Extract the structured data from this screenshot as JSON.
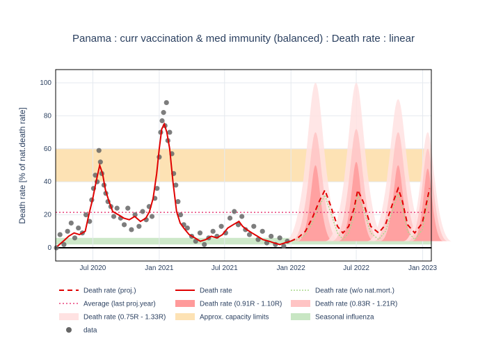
{
  "chart_data": {
    "type": "line",
    "title": "Panama : curr vaccination & med immunity (balanced) : Death rate : linear",
    "ylabel": "Death rate [% of nat.death rate]",
    "xlabel": "",
    "ylim": [
      -8,
      108
    ],
    "xlim": [
      "2020-03-20",
      "2023-01-25"
    ],
    "yticks": [
      0,
      20,
      40,
      60,
      80,
      100
    ],
    "xticks": [
      {
        "date": "2020-07-01",
        "label": "Jul 2020"
      },
      {
        "date": "2021-01-01",
        "label": "Jan 2021"
      },
      {
        "date": "2021-07-01",
        "label": "Jul 2021"
      },
      {
        "date": "2022-01-01",
        "label": "Jan 2022"
      },
      {
        "date": "2022-07-01",
        "label": "Jul 2022"
      },
      {
        "date": "2023-01-01",
        "label": "Jan 2023"
      }
    ],
    "grid": true,
    "bands": {
      "capacity": {
        "y0": 40,
        "y1": 60,
        "color": "#fde2b4"
      },
      "influenza": {
        "y0": 2,
        "y1": 6,
        "color": "#c8e6c3"
      }
    },
    "average_last_proj_year": 21.5,
    "colors": {
      "proj": "#e00000",
      "death_rate": "#e00000",
      "wo_natmort": "#a8d98c",
      "average": "#e8407a",
      "data": "#666666",
      "band_inner": "#ff9a9a",
      "band_mid": "#ffc4c4",
      "band_outer": "#ffe2e2"
    },
    "series": [
      {
        "name": "Death rate",
        "x": [
          "2020-03-25",
          "2020-04-10",
          "2020-04-25",
          "2020-05-10",
          "2020-05-25",
          "2020-06-10",
          "2020-06-20",
          "2020-07-01",
          "2020-07-10",
          "2020-07-20",
          "2020-07-28",
          "2020-08-05",
          "2020-08-15",
          "2020-08-25",
          "2020-09-10",
          "2020-09-25",
          "2020-10-10",
          "2020-10-25",
          "2020-11-10",
          "2020-11-25",
          "2020-12-05",
          "2020-12-15",
          "2020-12-25",
          "2021-01-01",
          "2021-01-08",
          "2021-01-15",
          "2021-01-22",
          "2021-01-30",
          "2021-02-08",
          "2021-02-18",
          "2021-02-28",
          "2021-03-10",
          "2021-03-25",
          "2021-04-10",
          "2021-04-25",
          "2021-05-10",
          "2021-05-25",
          "2021-06-10",
          "2021-06-25",
          "2021-07-10",
          "2021-07-25",
          "2021-08-10",
          "2021-08-20",
          "2021-09-01",
          "2021-09-15",
          "2021-09-30",
          "2021-10-15",
          "2021-11-01",
          "2021-11-15",
          "2021-12-01",
          "2021-12-15",
          "2021-12-31"
        ],
        "values": [
          1,
          4,
          7,
          9,
          8,
          10,
          20,
          30,
          40,
          50,
          45,
          35,
          28,
          22,
          20,
          18,
          17,
          19,
          16,
          18,
          22,
          30,
          45,
          60,
          72,
          75,
          70,
          60,
          40,
          22,
          15,
          12,
          8,
          6,
          4,
          5,
          7,
          6,
          8,
          12,
          14,
          16,
          13,
          11,
          9,
          7,
          5,
          4,
          3,
          2,
          3,
          4
        ]
      },
      {
        "name": "Death rate (proj.)",
        "x": [
          "2021-12-31",
          "2022-01-20",
          "2022-02-10",
          "2022-03-01",
          "2022-03-20",
          "2022-04-05",
          "2022-04-20",
          "2022-05-10",
          "2022-05-25",
          "2022-06-10",
          "2022-06-25",
          "2022-07-05",
          "2022-07-20",
          "2022-08-10",
          "2022-09-01",
          "2022-09-20",
          "2022-10-10",
          "2022-10-25",
          "2022-11-05",
          "2022-11-20",
          "2022-12-10",
          "2022-12-31",
          "2023-01-20"
        ],
        "values": [
          4,
          6,
          10,
          18,
          28,
          35,
          26,
          13,
          9,
          13,
          24,
          35,
          28,
          13,
          9,
          14,
          27,
          36,
          29,
          14,
          9,
          15,
          36
        ]
      },
      {
        "name": "Death rate (w/o nat.mort.)",
        "x": [
          "2021-12-31",
          "2022-01-20",
          "2022-02-10",
          "2022-03-01",
          "2022-03-20",
          "2022-04-05",
          "2022-04-20",
          "2022-05-10",
          "2022-05-25",
          "2022-06-10",
          "2022-06-25",
          "2022-07-05",
          "2022-07-20",
          "2022-08-10",
          "2022-09-01",
          "2022-09-20",
          "2022-10-10",
          "2022-10-25",
          "2022-11-05",
          "2022-11-20",
          "2022-12-10",
          "2022-12-31",
          "2023-01-20"
        ],
        "values": [
          4,
          5,
          8,
          15,
          25,
          32,
          22,
          9,
          5,
          9,
          20,
          32,
          24,
          9,
          5,
          10,
          23,
          33,
          25,
          10,
          5,
          11,
          33
        ]
      },
      {
        "name": "data",
        "x": [
          "2020-03-22",
          "2020-04-01",
          "2020-04-12",
          "2020-04-22",
          "2020-05-02",
          "2020-05-12",
          "2020-05-22",
          "2020-06-02",
          "2020-06-12",
          "2020-06-22",
          "2020-06-28",
          "2020-07-03",
          "2020-07-08",
          "2020-07-13",
          "2020-07-18",
          "2020-07-22",
          "2020-07-26",
          "2020-08-01",
          "2020-08-06",
          "2020-08-12",
          "2020-08-20",
          "2020-08-28",
          "2020-09-06",
          "2020-09-16",
          "2020-09-26",
          "2020-10-06",
          "2020-10-16",
          "2020-10-26",
          "2020-11-06",
          "2020-11-16",
          "2020-11-26",
          "2020-12-04",
          "2020-12-12",
          "2020-12-20",
          "2020-12-26",
          "2021-01-01",
          "2021-01-05",
          "2021-01-09",
          "2021-01-13",
          "2021-01-17",
          "2021-01-21",
          "2021-01-25",
          "2021-01-30",
          "2021-02-05",
          "2021-02-10",
          "2021-02-16",
          "2021-02-22",
          "2021-03-01",
          "2021-03-10",
          "2021-03-20",
          "2021-04-01",
          "2021-04-12",
          "2021-04-24",
          "2021-05-06",
          "2021-05-18",
          "2021-05-30",
          "2021-06-10",
          "2021-06-22",
          "2021-07-04",
          "2021-07-16",
          "2021-07-28",
          "2021-08-08",
          "2021-08-18",
          "2021-08-28",
          "2021-09-08",
          "2021-09-20",
          "2021-10-02",
          "2021-10-14",
          "2021-10-26",
          "2021-11-07",
          "2021-11-19",
          "2021-12-01",
          "2021-12-12",
          "2021-12-22"
        ],
        "values": [
          0,
          8,
          2,
          10,
          15,
          6,
          12,
          9,
          20,
          16,
          29,
          36,
          44,
          40,
          59,
          52,
          45,
          38,
          33,
          28,
          25,
          19,
          24,
          18,
          14,
          24,
          11,
          20,
          13,
          22,
          17,
          25,
          19,
          30,
          36,
          55,
          70,
          77,
          82,
          74,
          88,
          65,
          70,
          57,
          45,
          38,
          28,
          20,
          14,
          12,
          7,
          4,
          9,
          2,
          6,
          10,
          7,
          13,
          9,
          18,
          22,
          14,
          19,
          11,
          8,
          13,
          5,
          10,
          3,
          7,
          2,
          6,
          1,
          4
        ]
      }
    ],
    "legend": [
      {
        "label": "Death rate (proj.)",
        "kind": "dash"
      },
      {
        "label": "Death rate",
        "kind": "line"
      },
      {
        "label": "Death rate (w/o nat.mort.)",
        "kind": "dot-green"
      },
      {
        "label": "Average (last proj.year)",
        "kind": "dot-pink"
      },
      {
        "label": "Death rate (0.91R - 1.10R)",
        "kind": "band-inner"
      },
      {
        "label": "Death rate (0.83R - 1.21R)",
        "kind": "band-mid"
      },
      {
        "label": "Death rate (0.75R - 1.33R)",
        "kind": "band-outer"
      },
      {
        "label": "Approx. capacity limits",
        "kind": "capacity"
      },
      {
        "label": "Seasonal influenza",
        "kind": "influenza"
      },
      {
        "label": "data",
        "kind": "marker"
      }
    ],
    "legend_position": "bottom"
  }
}
